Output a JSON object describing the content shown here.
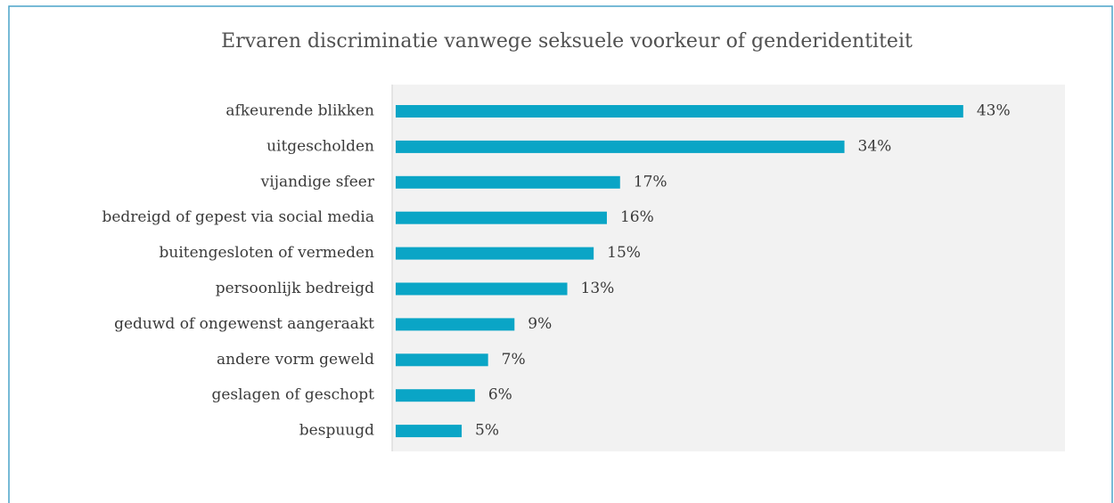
{
  "chart_data": {
    "type": "bar",
    "orientation": "horizontal",
    "title": "Ervaren discriminatie vanwege seksuele voorkeur of genderidentiteit",
    "categories": [
      "afkeurende blikken",
      "uitgescholden",
      "vijandige sfeer",
      "bedreigd of gepest via social media",
      "buitengesloten of vermeden",
      "persoonlijk bedreigd",
      "geduwd of ongewenst aangeraakt",
      "andere vorm geweld",
      "geslagen of geschopt",
      "bespuugd"
    ],
    "values": [
      43,
      34,
      17,
      16,
      15,
      13,
      9,
      7,
      6,
      5
    ],
    "value_labels": [
      "43%",
      "34%",
      "17%",
      "16%",
      "15%",
      "13%",
      "9%",
      "7%",
      "6%",
      "5%"
    ],
    "color": "#0aa5c6"
  }
}
